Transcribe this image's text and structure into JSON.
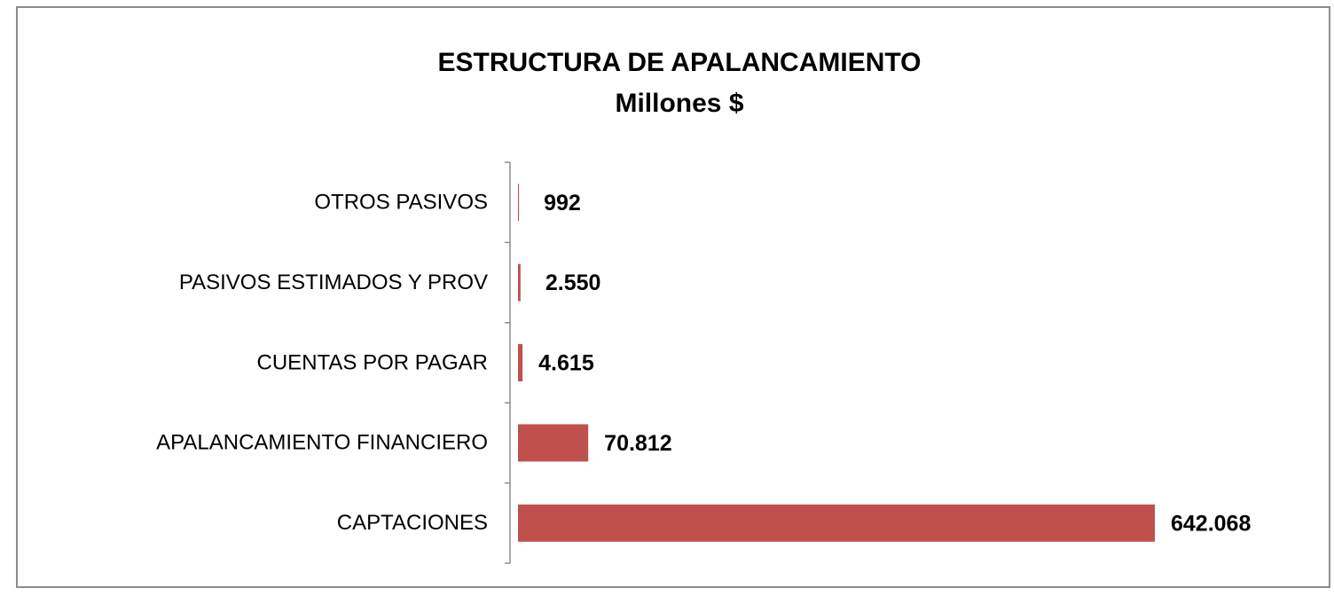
{
  "chart_data": {
    "type": "bar",
    "orientation": "horizontal",
    "title": "ESTRUCTURA DE APALANCAMIENTO",
    "subtitle": "Millones $",
    "categories": [
      "OTROS PASIVOS",
      "PASIVOS ESTIMADOS Y PROV",
      "CUENTAS POR PAGAR",
      "APALANCAMIENTO FINANCIERO",
      "CAPTACIONES"
    ],
    "values": [
      992,
      2550,
      4615,
      70812,
      642068
    ],
    "value_labels": [
      "992",
      "2.550",
      "4.615",
      "70.812",
      "642.068"
    ],
    "color": "#c0504d",
    "xlim": [
      0,
      700000
    ]
  }
}
